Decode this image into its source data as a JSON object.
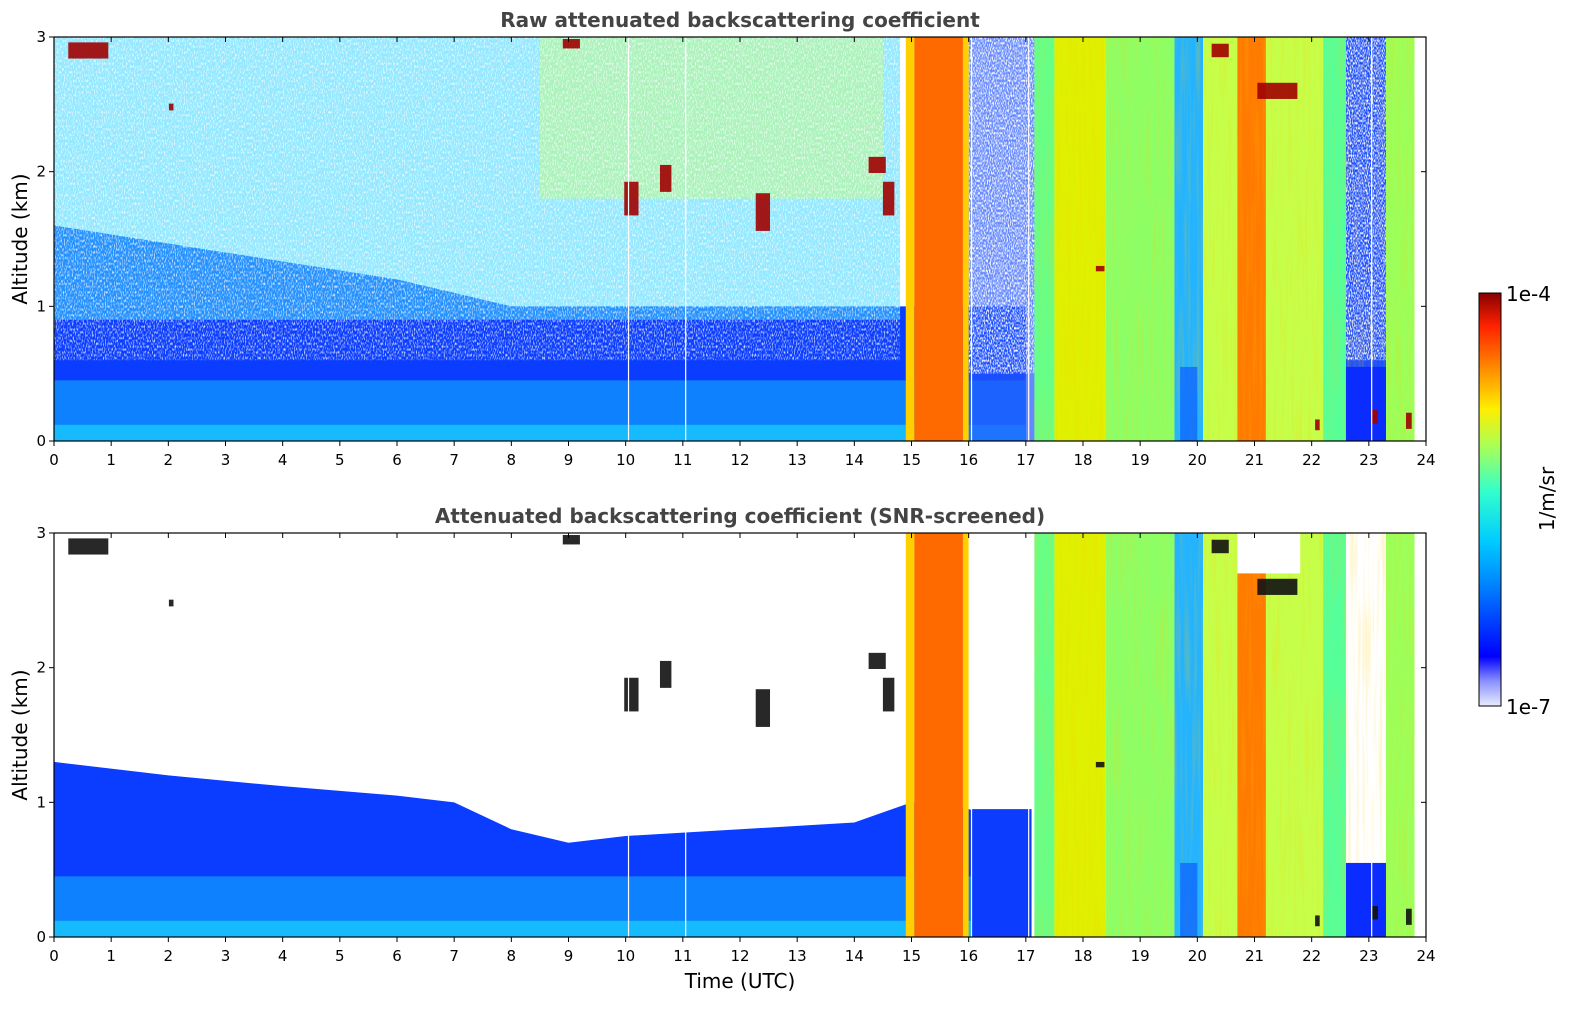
{
  "chart_data": [
    {
      "type": "heatmap",
      "title": "Raw attenuated backscattering coefficient",
      "xlabel": "",
      "ylabel": "Altitude (km)",
      "xlim": [
        0,
        24
      ],
      "ylim": [
        0,
        3
      ],
      "xticks": [
        "0",
        "1",
        "2",
        "3",
        "4",
        "5",
        "6",
        "7",
        "8",
        "9",
        "10",
        "11",
        "12",
        "13",
        "14",
        "15",
        "16",
        "17",
        "18",
        "19",
        "20",
        "21",
        "22",
        "23",
        "24"
      ],
      "yticks": [
        "0",
        "1",
        "2",
        "3"
      ],
      "colorbar": {
        "label": "1/m/sr",
        "min": "1e-7",
        "max": "1e-4",
        "scale": "log",
        "colormap": "jet"
      },
      "screened": false
    },
    {
      "type": "heatmap",
      "title": "Attenuated backscattering coefficient (SNR-screened)",
      "xlabel": "Time (UTC)",
      "ylabel": "Altitude (km)",
      "xlim": [
        0,
        24
      ],
      "ylim": [
        0,
        3
      ],
      "xticks": [
        "0",
        "1",
        "2",
        "3",
        "4",
        "5",
        "6",
        "7",
        "8",
        "9",
        "10",
        "11",
        "12",
        "13",
        "14",
        "15",
        "16",
        "17",
        "18",
        "19",
        "20",
        "21",
        "22",
        "23",
        "24"
      ],
      "yticks": [
        "0",
        "1",
        "2",
        "3"
      ],
      "colorbar": {
        "label": "1/m/sr",
        "min": "1e-7",
        "max": "1e-4",
        "scale": "log",
        "colormap": "jet"
      },
      "screened": true
    }
  ],
  "colorbar": {
    "label": "1/m/sr",
    "max_label": "1e-4",
    "min_label": "1e-7"
  }
}
